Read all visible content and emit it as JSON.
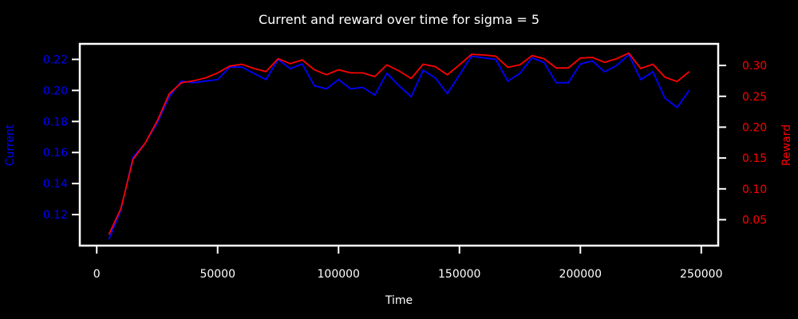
{
  "chart_data": {
    "type": "line",
    "title": "Current and reward over time for sigma = 5",
    "xlabel": "Time",
    "ylabel_left": "Current",
    "ylabel_right": "Reward",
    "xlim": [
      -7000,
      257000
    ],
    "ylim_left": [
      0.1,
      0.23
    ],
    "ylim_right": [
      0.008,
      0.335
    ],
    "x_ticks": [
      0,
      50000,
      100000,
      150000,
      200000,
      250000
    ],
    "y_left_ticks": [
      "0.12",
      "0.14",
      "0.16",
      "0.18",
      "0.20",
      "0.22"
    ],
    "y_right_ticks": [
      "0.05",
      "0.10",
      "0.15",
      "0.20",
      "0.25",
      "0.30"
    ],
    "x": [
      5000,
      10000,
      15000,
      20000,
      25000,
      30000,
      35000,
      40000,
      45000,
      50000,
      55000,
      60000,
      65000,
      70000,
      75000,
      80000,
      85000,
      90000,
      95000,
      100000,
      105000,
      110000,
      115000,
      120000,
      125000,
      130000,
      135000,
      140000,
      145000,
      150000,
      155000,
      160000,
      165000,
      170000,
      175000,
      180000,
      185000,
      190000,
      195000,
      200000,
      205000,
      210000,
      215000,
      220000,
      225000,
      230000,
      235000,
      240000,
      245000
    ],
    "series": [
      {
        "name": "Current",
        "axis": "left",
        "color": "#0000ff",
        "values": [
          0.104,
          0.123,
          0.157,
          0.166,
          0.179,
          0.196,
          0.206,
          0.205,
          0.206,
          0.207,
          0.215,
          0.215,
          0.211,
          0.207,
          0.22,
          0.214,
          0.217,
          0.203,
          0.201,
          0.207,
          0.201,
          0.202,
          0.197,
          0.211,
          0.203,
          0.196,
          0.213,
          0.208,
          0.198,
          0.21,
          0.222,
          0.221,
          0.22,
          0.206,
          0.211,
          0.221,
          0.218,
          0.205,
          0.205,
          0.217,
          0.219,
          0.212,
          0.216,
          0.223,
          0.207,
          0.212,
          0.195,
          0.189,
          0.2
        ]
      },
      {
        "name": "Reward",
        "axis": "right",
        "color": "#ff0000",
        "values": [
          0.026,
          0.068,
          0.148,
          0.174,
          0.21,
          0.254,
          0.272,
          0.275,
          0.28,
          0.288,
          0.299,
          0.302,
          0.295,
          0.29,
          0.311,
          0.303,
          0.309,
          0.293,
          0.285,
          0.293,
          0.288,
          0.288,
          0.282,
          0.301,
          0.291,
          0.279,
          0.302,
          0.298,
          0.285,
          0.301,
          0.318,
          0.317,
          0.315,
          0.297,
          0.301,
          0.316,
          0.311,
          0.296,
          0.296,
          0.312,
          0.313,
          0.305,
          0.311,
          0.32,
          0.295,
          0.302,
          0.281,
          0.274,
          0.29
        ]
      }
    ],
    "colors": {
      "background": "#000000",
      "axes": "#ffffff",
      "left_axis_text": "#0000ff",
      "right_axis_text": "#ff0000"
    }
  }
}
